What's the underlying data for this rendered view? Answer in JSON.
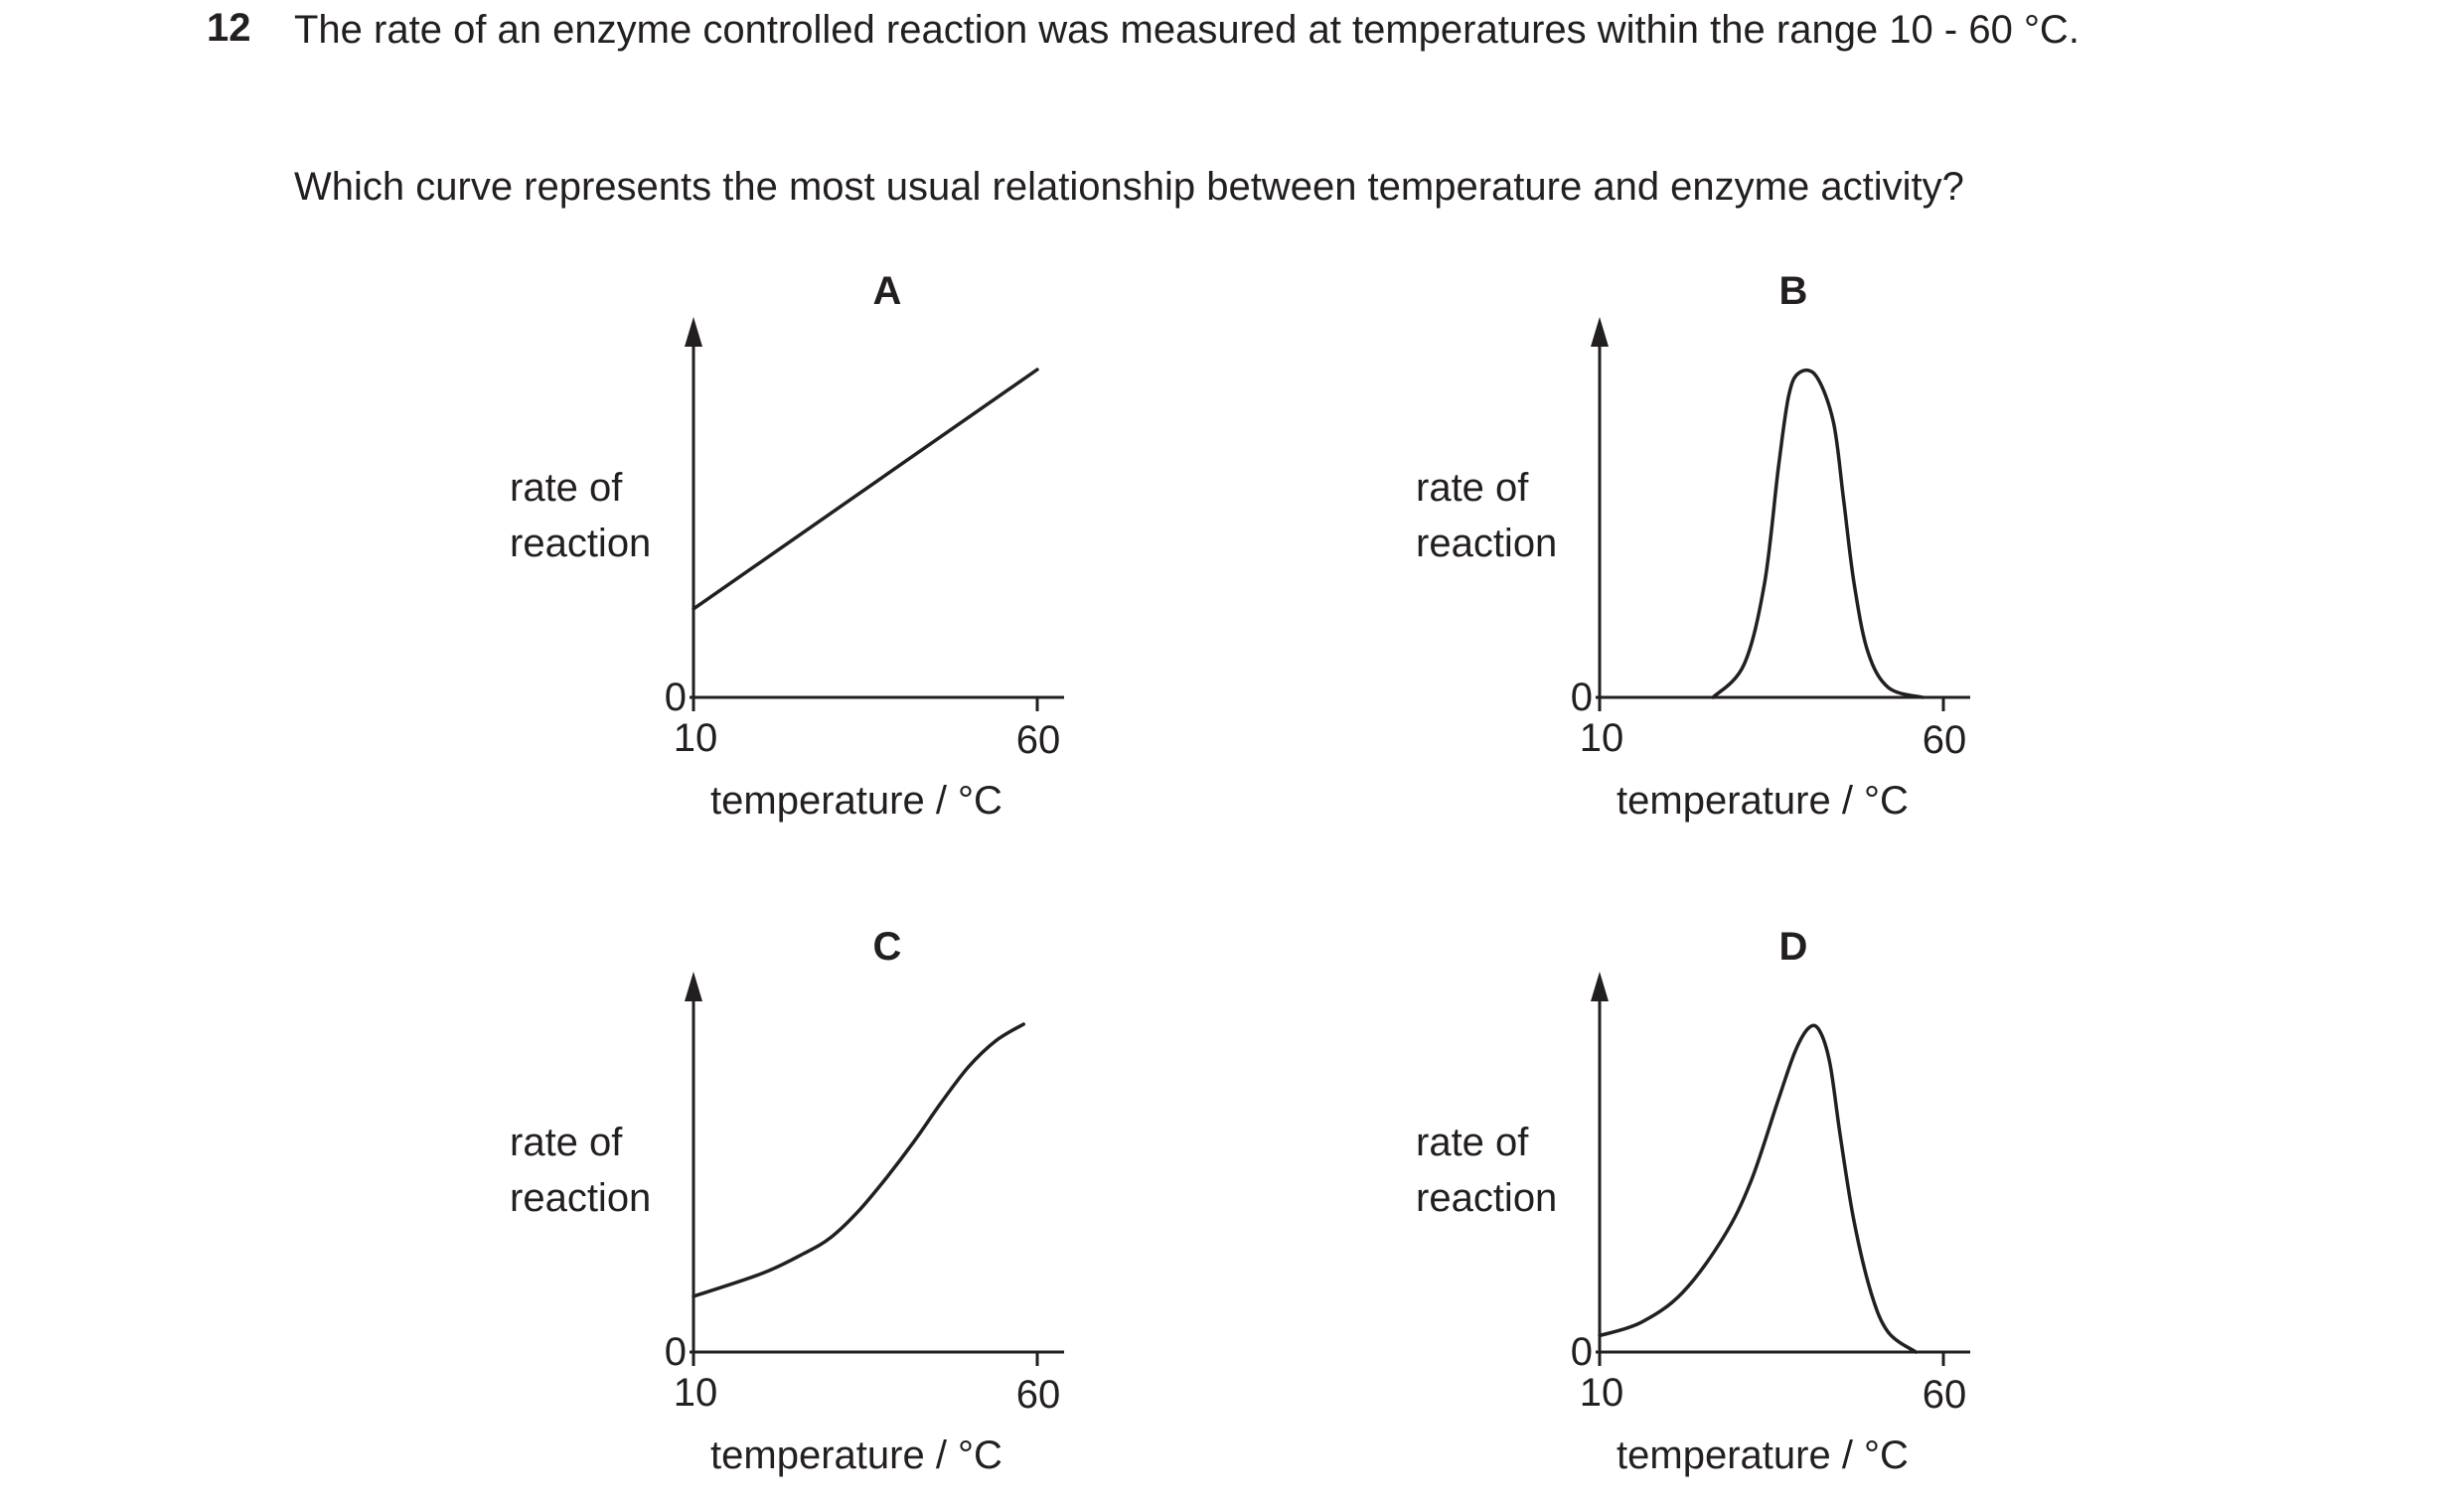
{
  "question": {
    "number": "12",
    "stem": "The rate of an enzyme controlled reaction was measured at temperatures within the range 10 - 60 °C.",
    "prompt": "Which curve represents the most usual relationship between temperature and enzyme activity?"
  },
  "chart_data": [
    {
      "type": "line",
      "option": "A",
      "ylabel_line1": "rate of",
      "ylabel_line2": "reaction",
      "xlabel": "temperature / °C",
      "y_origin_label": "0",
      "x_ticks": [
        "10",
        "60"
      ],
      "xlim": [
        10,
        60
      ],
      "shape": "straight line rising steadily from a positive rate at 10 °C to the maximum at 60 °C",
      "x": [
        10,
        60
      ],
      "y": [
        0.27,
        1.0
      ]
    },
    {
      "type": "line",
      "option": "B",
      "ylabel_line1": "rate of",
      "ylabel_line2": "reaction",
      "xlabel": "temperature / °C",
      "y_origin_label": "0",
      "x_ticks": [
        "10",
        "60"
      ],
      "xlim": [
        10,
        60
      ],
      "shape": "symmetrical bell-shaped peak",
      "x": [
        26.5,
        31,
        34,
        36,
        37.5,
        39,
        41.5,
        44,
        45.5,
        47,
        49,
        52,
        57
      ],
      "y": [
        0.0,
        0.1,
        0.35,
        0.7,
        0.92,
        0.99,
        0.98,
        0.84,
        0.6,
        0.35,
        0.14,
        0.03,
        0.0
      ]
    },
    {
      "type": "line",
      "option": "C",
      "ylabel_line1": "rate of",
      "ylabel_line2": "reaction",
      "xlabel": "temperature / °C",
      "y_origin_label": "0",
      "x_ticks": [
        "10",
        "60"
      ],
      "xlim": [
        10,
        60
      ],
      "shape": "gently rising curve that steepens at higher temperatures",
      "x": [
        10,
        20,
        26,
        30,
        34,
        38,
        42,
        46,
        50,
        54,
        58
      ],
      "y": [
        0.17,
        0.24,
        0.3,
        0.35,
        0.43,
        0.53,
        0.64,
        0.76,
        0.87,
        0.95,
        1.0
      ]
    },
    {
      "type": "line",
      "option": "D",
      "ylabel_line1": "rate of",
      "ylabel_line2": "reaction",
      "xlabel": "temperature / °C",
      "y_origin_label": "0",
      "x_ticks": [
        "10",
        "60"
      ],
      "xlim": [
        10,
        60
      ],
      "shape": "gradual rise to an optimum followed by a steep fall",
      "x": [
        10,
        16,
        22,
        28,
        32,
        36,
        38.5,
        40.5,
        42,
        43.5,
        45,
        47,
        49.5,
        52,
        56
      ],
      "y": [
        0.05,
        0.09,
        0.18,
        0.35,
        0.52,
        0.77,
        0.92,
        0.99,
        0.98,
        0.88,
        0.66,
        0.4,
        0.18,
        0.06,
        0.0
      ]
    }
  ]
}
